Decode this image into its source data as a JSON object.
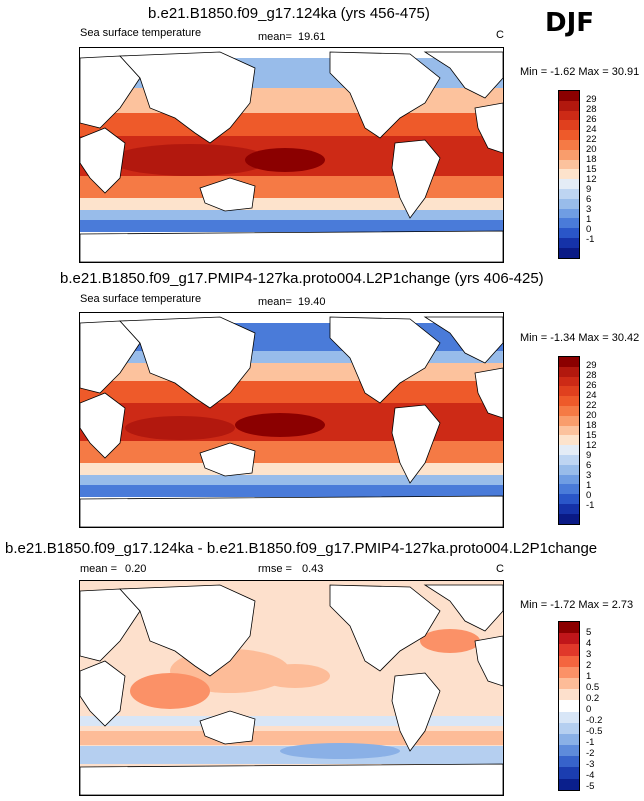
{
  "season": "DJF",
  "units": "C",
  "panels": [
    {
      "title": "b.e21.B1850.f09_g17.124ka (yrs 456-475)",
      "subtitle": "Sea surface temperature",
      "mean_label": "mean=",
      "mean_value": "19.61",
      "minmax": "Min = -1.62 Max = 30.91",
      "colorbar_labels": [
        "29",
        "28",
        "26",
        "24",
        "22",
        "20",
        "18",
        "15",
        "12",
        "9",
        "6",
        "3",
        "1",
        "0",
        "-1"
      ]
    },
    {
      "title": "b.e21.B1850.f09_g17.PMIP4-127ka.proto004.L2P1change (yrs 406-425)",
      "subtitle": "Sea surface temperature",
      "mean_label": "mean=",
      "mean_value": "19.40",
      "minmax": "Min = -1.34 Max = 30.42",
      "colorbar_labels": [
        "29",
        "28",
        "26",
        "24",
        "22",
        "20",
        "18",
        "15",
        "12",
        "9",
        "6",
        "3",
        "1",
        "0",
        "-1"
      ]
    },
    {
      "title": "b.e21.B1850.f09_g17.124ka - b.e21.B1850.f09_g17.PMIP4-127ka.proto004.L2P1change",
      "mean_label": "mean =",
      "mean_value": "0.20",
      "rmse_label": "rmse =",
      "rmse_value": "0.43",
      "minmax": "Min = -1.72 Max = 2.73",
      "colorbar_labels": [
        "5",
        "4",
        "3",
        "2",
        "1",
        "0.5",
        "0.2",
        "0",
        "-0.2",
        "-0.5",
        "-1",
        "-2",
        "-3",
        "-4",
        "-5"
      ]
    }
  ],
  "colors": {
    "sst_scale": [
      "#8b0000",
      "#b2180e",
      "#cd2a16",
      "#e0401e",
      "#ee5a2a",
      "#f57a45",
      "#f99d6c",
      "#fcc29d",
      "#fde3cc",
      "#e4ecf6",
      "#bed5f2",
      "#98bcea",
      "#6f9de3",
      "#4a7bd9",
      "#2a56c8",
      "#1532a8",
      "#0a1a85"
    ],
    "diff_scale": [
      "#8b0000",
      "#c0161a",
      "#e0382a",
      "#f4653f",
      "#fb9167",
      "#fdbc98",
      "#fde0cc",
      "#ffffff",
      "#d8e6f7",
      "#b5cff0",
      "#8ab0e6",
      "#5e8bdb",
      "#3763cb",
      "#1b3db0",
      "#0a1f8c"
    ],
    "land": "#ffffff",
    "coast": "#000000"
  }
}
